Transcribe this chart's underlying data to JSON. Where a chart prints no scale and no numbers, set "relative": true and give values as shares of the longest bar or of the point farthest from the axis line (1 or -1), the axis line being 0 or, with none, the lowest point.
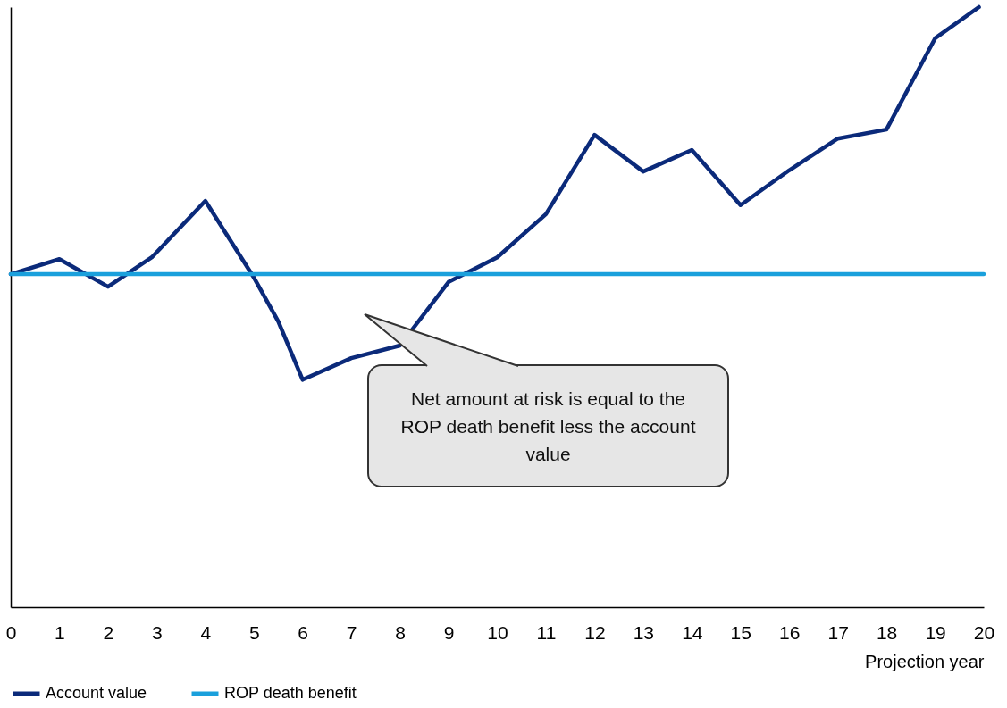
{
  "chart_data": {
    "type": "line",
    "relative": true,
    "xlabel": "Projection year",
    "xlim": [
      0,
      20
    ],
    "xticks": [
      0,
      1,
      2,
      3,
      4,
      5,
      6,
      7,
      8,
      9,
      10,
      11,
      12,
      13,
      14,
      15,
      16,
      17,
      18,
      19,
      20
    ],
    "series": [
      {
        "name": "Account value",
        "color": "#0b2a7a",
        "x": [
          0,
          1,
          2,
          2.9,
          4,
          5,
          5.5,
          6,
          7,
          8,
          9,
          10,
          11,
          12,
          13,
          14,
          15,
          16,
          17,
          18,
          19,
          19.9
        ],
        "values": [
          0.555,
          0.58,
          0.534,
          0.583,
          0.677,
          0.549,
          0.476,
          0.379,
          0.415,
          0.436,
          0.542,
          0.583,
          0.655,
          0.787,
          0.726,
          0.762,
          0.67,
          0.728,
          0.781,
          0.796,
          0.948,
          1.0
        ]
      },
      {
        "name": "ROP death benefit",
        "color": "#1aa0dc",
        "x": [
          0,
          20
        ],
        "values": [
          0.555,
          0.555
        ]
      }
    ],
    "legend": "bottom",
    "grid": false,
    "marker": "none",
    "line_style": "solid",
    "annotations": [
      "Net amount at risk is equal to the ROP death benefit less the account value"
    ]
  }
}
